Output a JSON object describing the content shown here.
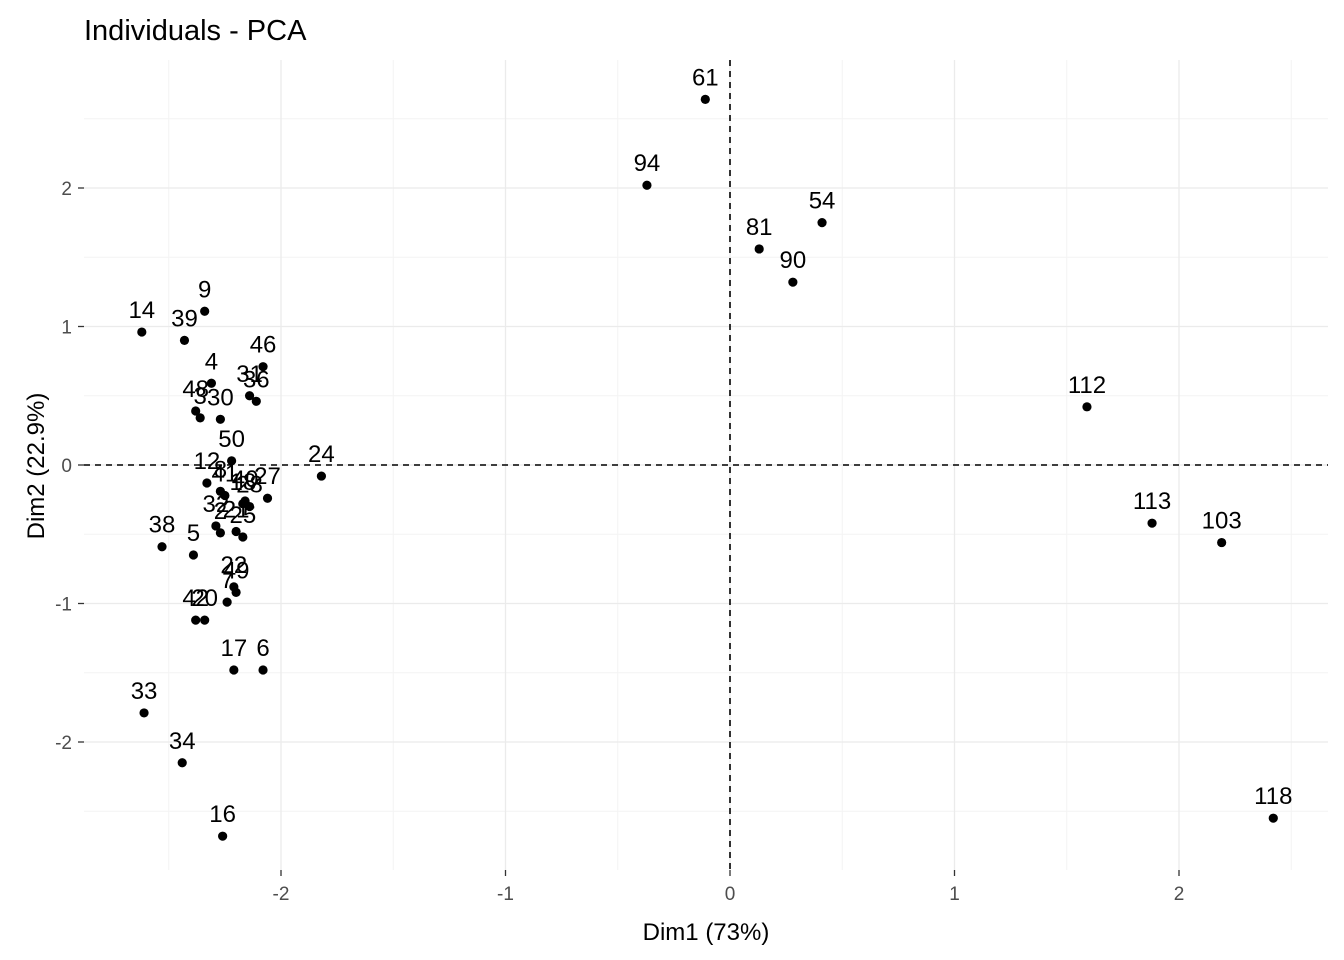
{
  "chart_data": {
    "type": "scatter",
    "title": "Individuals - PCA",
    "xlabel": "Dim1 (73%)",
    "ylabel": "Dim2 (22.9%)",
    "xlim": [
      -2.85,
      2.6
    ],
    "ylim": [
      -2.9,
      2.9
    ],
    "x_ticks": [
      -2,
      -1,
      0,
      1,
      2
    ],
    "y_ticks": [
      -2,
      -1,
      0,
      1,
      2
    ],
    "x_minor": [
      -2.5,
      -1.5,
      -0.5,
      0.5,
      1.5,
      2.5
    ],
    "y_minor": [
      -2.5,
      -1.5,
      -0.5,
      0.5,
      1.5,
      2.5
    ],
    "grid": true,
    "reference_lines": {
      "x": 0,
      "y": 0,
      "style": "dashed"
    },
    "point_color": "#000000",
    "points": [
      {
        "label": "61",
        "x": -0.11,
        "y": 2.64
      },
      {
        "label": "94",
        "x": -0.37,
        "y": 2.02
      },
      {
        "label": "54",
        "x": 0.41,
        "y": 1.75
      },
      {
        "label": "81",
        "x": 0.13,
        "y": 1.56
      },
      {
        "label": "90",
        "x": 0.28,
        "y": 1.32
      },
      {
        "label": "112",
        "x": 1.59,
        "y": 0.42
      },
      {
        "label": "113",
        "x": 1.88,
        "y": -0.42
      },
      {
        "label": "103",
        "x": 2.19,
        "y": -0.56
      },
      {
        "label": "118",
        "x": 2.42,
        "y": -2.55
      },
      {
        "label": "14",
        "x": -2.62,
        "y": 0.96
      },
      {
        "label": "9",
        "x": -2.34,
        "y": 1.11
      },
      {
        "label": "39",
        "x": -2.43,
        "y": 0.9
      },
      {
        "label": "46",
        "x": -2.08,
        "y": 0.71
      },
      {
        "label": "4",
        "x": -2.31,
        "y": 0.59
      },
      {
        "label": "31",
        "x": -2.14,
        "y": 0.5
      },
      {
        "label": "36",
        "x": -2.11,
        "y": 0.46
      },
      {
        "label": "48",
        "x": -2.38,
        "y": 0.39
      },
      {
        "label": "3",
        "x": -2.36,
        "y": 0.34
      },
      {
        "label": "30",
        "x": -2.27,
        "y": 0.33
      },
      {
        "label": "50",
        "x": -2.22,
        "y": 0.03
      },
      {
        "label": "24",
        "x": -1.82,
        "y": -0.08
      },
      {
        "label": "12",
        "x": -2.33,
        "y": -0.13
      },
      {
        "label": "8",
        "x": -2.27,
        "y": -0.19
      },
      {
        "label": "40",
        "x": -2.16,
        "y": -0.26
      },
      {
        "label": "27",
        "x": -2.06,
        "y": -0.24
      },
      {
        "label": "41",
        "x": -2.25,
        "y": -0.22
      },
      {
        "label": "18",
        "x": -2.17,
        "y": -0.28
      },
      {
        "label": "28",
        "x": -2.14,
        "y": -0.3
      },
      {
        "label": "21",
        "x": -2.2,
        "y": -0.48
      },
      {
        "label": "2",
        "x": -2.27,
        "y": -0.49
      },
      {
        "label": "25",
        "x": -2.17,
        "y": -0.52
      },
      {
        "label": "32",
        "x": -2.29,
        "y": -0.44
      },
      {
        "label": "38",
        "x": -2.53,
        "y": -0.59
      },
      {
        "label": "5",
        "x": -2.39,
        "y": -0.65
      },
      {
        "label": "22",
        "x": -2.21,
        "y": -0.88
      },
      {
        "label": "49",
        "x": -2.2,
        "y": -0.92
      },
      {
        "label": "7",
        "x": -2.24,
        "y": -0.99
      },
      {
        "label": "42",
        "x": -2.38,
        "y": -1.12
      },
      {
        "label": "20",
        "x": -2.34,
        "y": -1.12
      },
      {
        "label": "17",
        "x": -2.21,
        "y": -1.48
      },
      {
        "label": "6",
        "x": -2.08,
        "y": -1.48
      },
      {
        "label": "33",
        "x": -2.61,
        "y": -1.79
      },
      {
        "label": "34",
        "x": -2.44,
        "y": -2.15
      },
      {
        "label": "16",
        "x": -2.26,
        "y": -2.68
      }
    ]
  }
}
